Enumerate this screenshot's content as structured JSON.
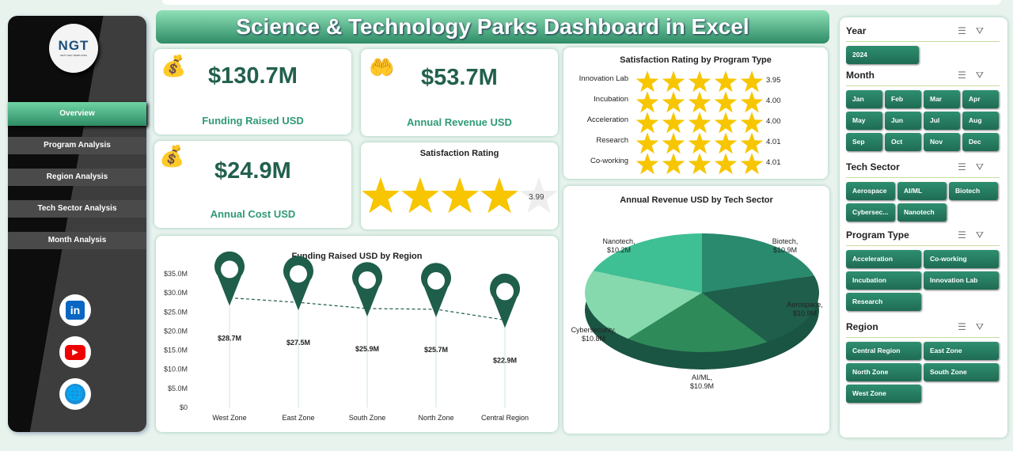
{
  "title": "Science & Technology Parks Dashboard in Excel",
  "logo": {
    "text": "NGT",
    "sub": "NEXT GEN TEMPLATES"
  },
  "nav": [
    "Overview",
    "Program Analysis",
    "Region Analysis",
    "Tech Sector Analysis",
    "Month Analysis"
  ],
  "social": [
    "linkedin-icon",
    "youtube-icon",
    "globe-icon"
  ],
  "kpis": {
    "funding": {
      "value": "$130.7M",
      "label": "Funding Raised USD"
    },
    "revenue": {
      "value": "$53.7M",
      "label": "Annual Revenue USD"
    },
    "cost": {
      "value": "$24.9M",
      "label": "Annual Cost USD"
    },
    "satisfaction": {
      "label": "Satisfaction Rating",
      "value": "3.99",
      "rating": 3.99,
      "max": 5
    }
  },
  "colors": {
    "accent": "#2e8c66",
    "dark": "#1f5e4b",
    "star": "#f7c600"
  },
  "chart_data": [
    {
      "type": "bar",
      "title": "Satisfaction Rating by Program Type",
      "categories": [
        "Innovation Lab",
        "Incubation",
        "Acceleration",
        "Research",
        "Co-working"
      ],
      "values": [
        3.95,
        4.0,
        4.0,
        4.01,
        4.01
      ],
      "labels": [
        "3.95",
        "4.00",
        "4.00",
        "4.01",
        "4.01"
      ],
      "max": 5
    },
    {
      "type": "line",
      "title": "Funding Raised USD by Region",
      "categories": [
        "West Zone",
        "East Zone",
        "South Zone",
        "North Zone",
        "Central Region"
      ],
      "values": [
        28.7,
        27.5,
        25.9,
        25.7,
        22.9
      ],
      "labels": [
        "$28.7M",
        "$27.5M",
        "$25.9M",
        "$25.7M",
        "$22.9M"
      ],
      "yticks": [
        "$0",
        "$5.0M",
        "$10.0M",
        "$15.0M",
        "$20.0M",
        "$25.0M",
        "$30.0M",
        "$35.0M"
      ],
      "ylim": [
        0,
        35
      ]
    },
    {
      "type": "pie",
      "title": "Annual Revenue USD by Tech Sector",
      "categories": [
        "Biotech",
        "Aerospace",
        "AI/ML",
        "Cybersecurity",
        "Nanotech"
      ],
      "values": [
        10.9,
        10.9,
        10.9,
        10.8,
        10.2
      ],
      "labels": [
        "Biotech,\n$10.9M",
        "Aerospace,\n$10.9M",
        "AI/ML,\n$10.9M",
        "Cybersecurity,\n$10.8M",
        "Nanotech,\n$10.2M"
      ],
      "colors": [
        "#2a8a6e",
        "#1f5e4b",
        "#2f8a5a",
        "#86d9ad",
        "#3fbf94"
      ]
    }
  ],
  "slicers": [
    {
      "title": "Year",
      "items": [
        "2024"
      ]
    },
    {
      "title": "Month",
      "items": [
        "Jan",
        "Feb",
        "Mar",
        "Apr",
        "May",
        "Jun",
        "Jul",
        "Aug",
        "Sep",
        "Oct",
        "Nov",
        "Dec"
      ]
    },
    {
      "title": "Tech Sector",
      "items": [
        "Aerospace",
        "AI/ML",
        "Biotech",
        "Cybersec...",
        "Nanotech"
      ]
    },
    {
      "title": "Program Type",
      "items": [
        "Acceleration",
        "Co-working",
        "Incubation",
        "Innovation Lab",
        "Research"
      ]
    },
    {
      "title": "Region",
      "items": [
        "Central Region",
        "East Zone",
        "North Zone",
        "South Zone",
        "West Zone"
      ]
    }
  ]
}
